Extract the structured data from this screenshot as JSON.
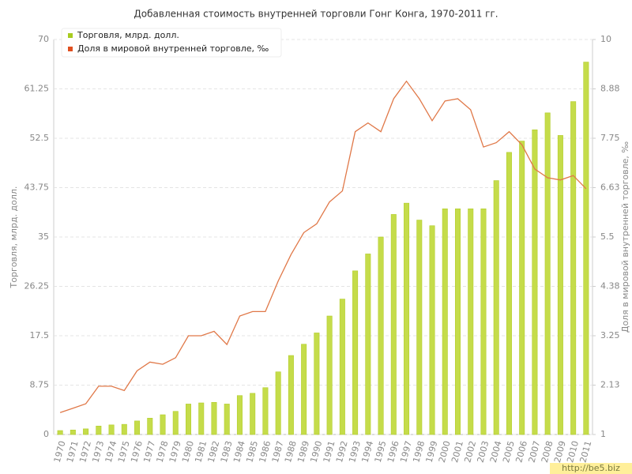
{
  "chart_data": {
    "type": "bar",
    "title": "Добавленная стоимость внутренней торговли Гонг Конга, 1970-2011 гг.",
    "y_label": "Торговля, млрд. долл.",
    "y2_label": "Доля в мировой внутренней торговле, ‰",
    "watermark": "http://be5.biz",
    "categories": [
      "1970",
      "1971",
      "1972",
      "1973",
      "1974",
      "1975",
      "1976",
      "1977",
      "1978",
      "1979",
      "1980",
      "1981",
      "1982",
      "1983",
      "1984",
      "1985",
      "1986",
      "1987",
      "1988",
      "1989",
      "1990",
      "1991",
      "1992",
      "1993",
      "1994",
      "1995",
      "1996",
      "1997",
      "1998",
      "1999",
      "2000",
      "2001",
      "2002",
      "2003",
      "2004",
      "2005",
      "2006",
      "2007",
      "2008",
      "2009",
      "2010",
      "2011"
    ],
    "series": [
      {
        "name": "Торговля, млрд. долл.",
        "type": "bar",
        "color": "#c5dc4a",
        "legend_color": "#a8cc20",
        "values": [
          0.7,
          0.8,
          1.0,
          1.5,
          1.7,
          1.8,
          2.4,
          2.9,
          3.5,
          4.1,
          5.4,
          5.6,
          5.7,
          5.4,
          6.9,
          7.3,
          8.3,
          11.1,
          14.0,
          16.0,
          18.0,
          21.0,
          24.0,
          29.0,
          32.0,
          35.0,
          39.0,
          41.0,
          38.0,
          37.0,
          40.0,
          40.0,
          40.0,
          40.0,
          45.0,
          50.0,
          52.0,
          54.0,
          57.0,
          53.0,
          59.0,
          66.0
        ]
      },
      {
        "name": "Доля в мировой внутренней торговле, ‰",
        "type": "line",
        "axis": "y2",
        "color": "#e07848",
        "legend_color": "#e05020",
        "values": [
          1.5,
          1.6,
          1.7,
          2.1,
          2.1,
          2.0,
          2.45,
          2.65,
          2.6,
          2.75,
          3.25,
          3.25,
          3.35,
          3.05,
          3.7,
          3.8,
          3.8,
          4.5,
          5.1,
          5.6,
          5.8,
          6.3,
          6.55,
          7.9,
          8.1,
          7.9,
          8.65,
          9.05,
          8.65,
          8.15,
          8.6,
          8.65,
          8.4,
          7.55,
          7.65,
          7.9,
          7.6,
          7.05,
          6.85,
          6.8,
          6.9,
          6.6
        ]
      }
    ],
    "ylim": [
      0,
      70
    ],
    "yticks": [
      0,
      8.75,
      17.5,
      26.25,
      35,
      43.75,
      52.5,
      61.25,
      70
    ],
    "y2lim": [
      1,
      10
    ],
    "y2ticks": [
      1,
      {
        "value": 2.125,
        "label": "2.13"
      },
      3.25,
      {
        "value": 4.375,
        "label": "4.38"
      },
      5.5,
      {
        "value": 6.625,
        "label": "6.63"
      },
      7.75,
      {
        "value": 8.875,
        "label": "8.88"
      },
      10
    ],
    "grid": true,
    "legend": "top-left"
  }
}
